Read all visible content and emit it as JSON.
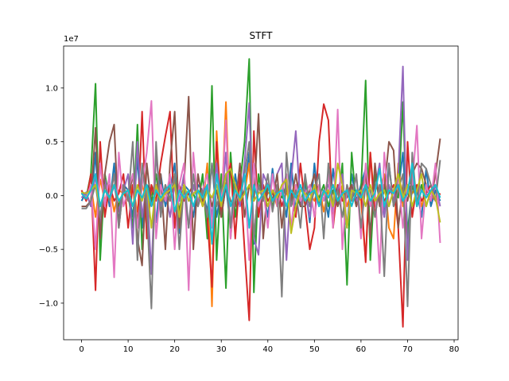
{
  "chart_data": {
    "type": "line",
    "title": "STFT",
    "xlabel": "",
    "ylabel": "",
    "y_offset_text": "1e7",
    "xlim": [
      -3.85,
      80.85
    ],
    "ylim": [
      -1.34,
      1.39
    ],
    "y_scale_factor": 10000000,
    "x_ticks": [
      0,
      10,
      20,
      30,
      40,
      50,
      60,
      70,
      80
    ],
    "y_ticks": [
      -1.0,
      -0.5,
      0.0,
      0.5,
      1.0
    ],
    "x_tick_labels": [
      "0",
      "10",
      "20",
      "30",
      "40",
      "50",
      "60",
      "70",
      "80"
    ],
    "y_tick_labels": [
      "−1.0",
      "−0.5",
      "0.0",
      "0.5",
      "1.0"
    ],
    "grid": false,
    "legend": false,
    "x": [
      0,
      1,
      2,
      3,
      4,
      5,
      6,
      7,
      8,
      9,
      10,
      11,
      12,
      13,
      14,
      15,
      16,
      17,
      18,
      19,
      20,
      21,
      22,
      23,
      24,
      25,
      26,
      27,
      28,
      29,
      30,
      31,
      32,
      33,
      34,
      35,
      36,
      37,
      38,
      39,
      40,
      41,
      42,
      43,
      44,
      45,
      46,
      47,
      48,
      49,
      50,
      51,
      52,
      53,
      54,
      55,
      56,
      57,
      58,
      59,
      60,
      61,
      62,
      63,
      64,
      65,
      66,
      67,
      68,
      69,
      70,
      71,
      72,
      73,
      74,
      75,
      76,
      77
    ],
    "series": [
      {
        "color": "#1f77b4",
        "values": [
          -0.05,
          0.03,
          -0.1,
          0.4,
          -0.35,
          0.2,
          -0.1,
          0.3,
          -0.25,
          0.1,
          0.05,
          -0.2,
          0.35,
          -0.3,
          0.1,
          0.05,
          -0.25,
          0.2,
          -0.1,
          0.05,
          0.3,
          -0.35,
          0.1,
          0.05,
          -0.2,
          0.1,
          0.05,
          -0.15,
          0.3,
          -0.2,
          0.05,
          0.1,
          -0.3,
          0.2,
          -0.1,
          0.05,
          0.4,
          -0.45,
          0.1,
          0.05,
          -0.2,
          0.25,
          -0.1,
          0.05,
          -0.2,
          0.3,
          -0.15,
          0.05,
          0.1,
          -0.25,
          0.3,
          -0.1,
          0.05,
          -0.2,
          0.25,
          -0.1,
          0.05,
          -0.3,
          0.2,
          -0.05,
          0.1,
          0.25,
          -0.35,
          0.1,
          0.05,
          -0.2,
          0.3,
          -0.1,
          0.05,
          0.4,
          -0.35,
          0.1,
          0.05,
          -0.2,
          0.25,
          -0.1,
          0.05,
          -0.05
        ]
      },
      {
        "color": "#ff7f0e",
        "values": [
          0.05,
          -0.05,
          0.1,
          -0.2,
          0.15,
          -0.05,
          0.1,
          -0.15,
          0.05,
          0.02,
          -0.05,
          0.1,
          -0.15,
          0.1,
          -0.05,
          0.02,
          0.1,
          -0.1,
          0.05,
          -0.02,
          0.15,
          -0.2,
          0.1,
          -0.05,
          0.02,
          0.05,
          -0.1,
          0.3,
          -1.03,
          0.6,
          -0.2,
          0.87,
          -0.4,
          0.1,
          -0.05,
          0.02,
          0.3,
          -0.4,
          0.1,
          -0.05,
          0.02,
          0.05,
          -0.1,
          0.05,
          0.02,
          -0.05,
          0.1,
          -0.1,
          0.05,
          0.02,
          -0.05,
          0.1,
          -0.15,
          0.05,
          0.02,
          -0.05,
          0.1,
          -0.1,
          0.05,
          0.02,
          -0.05,
          -0.6,
          0.4,
          -0.1,
          0.05,
          0.2,
          -0.3,
          -0.4,
          0.3,
          -0.1,
          0.05,
          0.02,
          0.1,
          -0.1,
          0.05,
          0.02,
          -0.05,
          0.02
        ]
      },
      {
        "color": "#2ca02c",
        "values": [
          0.03,
          -0.02,
          0.2,
          1.04,
          -0.6,
          0.2,
          -0.05,
          0.1,
          -0.1,
          0.05,
          0.02,
          -0.3,
          0.66,
          -0.5,
          0.1,
          -0.05,
          0.2,
          -0.15,
          0.1,
          -0.05,
          0.2,
          -0.15,
          0.1,
          -0.05,
          0.02,
          -0.1,
          0.2,
          -0.4,
          1.02,
          -0.6,
          0.2,
          -0.86,
          0.4,
          -0.2,
          0.1,
          0.5,
          1.27,
          -0.9,
          0.2,
          -0.05,
          0.1,
          -0.1,
          0.05,
          -0.02,
          0.1,
          -0.05,
          0.02,
          -0.1,
          0.15,
          -0.1,
          0.05,
          -0.02,
          0.1,
          -0.1,
          0.05,
          -0.1,
          0.3,
          -0.83,
          0.4,
          -0.1,
          0.05,
          1.07,
          -0.6,
          0.2,
          -0.05,
          0.1,
          -0.1,
          0.05,
          -0.02,
          0.87,
          -0.4,
          0.1,
          -0.05,
          0.1,
          -0.1,
          0.05,
          -0.02,
          0.02
        ]
      },
      {
        "color": "#d62728",
        "values": [
          0.05,
          -0.05,
          0.2,
          -0.88,
          0.5,
          -0.2,
          0.1,
          -0.05,
          0.02,
          0.2,
          -0.3,
          0.1,
          -0.3,
          0.78,
          -0.4,
          0.1,
          -0.05,
          0.3,
          0.55,
          0.78,
          -0.3,
          0.1,
          -0.05,
          0.02,
          0.1,
          -0.05,
          0.02,
          -0.2,
          -0.85,
          0.5,
          -0.2,
          0.1,
          0.3,
          -0.4,
          0.2,
          -0.5,
          -1.16,
          0.6,
          -0.2,
          0.1,
          -0.05,
          0.02,
          0.1,
          -0.1,
          0.05,
          0.02,
          -0.2,
          0.3,
          -0.1,
          -0.5,
          -0.3,
          0.5,
          0.85,
          0.7,
          -0.3,
          0.1,
          -0.05,
          0.02,
          0.1,
          -0.1,
          0.05,
          -0.62,
          0.4,
          -0.2,
          0.1,
          -0.05,
          0.02,
          0.1,
          -0.3,
          -1.22,
          0.5,
          -0.2,
          0.1,
          -0.05,
          0.02,
          0.1,
          -0.05,
          0.02
        ]
      },
      {
        "color": "#9467bd",
        "values": [
          -0.02,
          0.03,
          -0.1,
          0.2,
          -0.3,
          0.15,
          -0.05,
          0.1,
          -0.15,
          0.05,
          0.2,
          -0.45,
          0.5,
          -0.2,
          0.1,
          -0.73,
          0.4,
          -0.1,
          0.05,
          -0.2,
          0.1,
          -0.05,
          0.2,
          -0.3,
          0.1,
          -0.05,
          0.02,
          0.1,
          -0.2,
          0.3,
          -0.1,
          0.4,
          -0.3,
          0.1,
          -0.1,
          0.3,
          0.86,
          -0.4,
          -0.55,
          0.2,
          0.1,
          -0.05,
          0.2,
          0.3,
          -0.6,
          0.15,
          0.6,
          -0.1,
          0.05,
          -0.2,
          0.1,
          -0.05,
          0.02,
          0.1,
          -0.15,
          0.05,
          0.2,
          -0.3,
          0.1,
          -0.05,
          0.02,
          0.1,
          -0.1,
          0.05,
          0.3,
          -0.2,
          0.1,
          -0.05,
          0.2,
          1.2,
          -0.6,
          0.2,
          -0.1,
          0.05,
          0.02,
          -0.05,
          0.1,
          -0.1
        ]
      },
      {
        "color": "#8c564b",
        "values": [
          -0.1,
          -0.1,
          -0.05,
          0.63,
          -0.4,
          0.2,
          0.5,
          0.66,
          -0.3,
          0.1,
          -0.05,
          0.2,
          -0.4,
          -0.65,
          0.3,
          -0.1,
          0.05,
          0.2,
          -0.5,
          0.3,
          0.78,
          -0.3,
          0.1,
          0.92,
          -0.5,
          0.2,
          -0.05,
          0.1,
          -0.1,
          0.05,
          -0.2,
          0.1,
          -0.05,
          -0.1,
          0.3,
          -0.2,
          0.1,
          -0.05,
          0.76,
          -0.4,
          0.1,
          -0.05,
          0.2,
          -0.3,
          0.1,
          -0.05,
          0.2,
          -0.1,
          -0.1,
          0.05,
          0.2,
          -0.1,
          0.05,
          -0.02,
          0.1,
          -0.1,
          0.05,
          -0.02,
          0.1,
          -0.1,
          0.05,
          0.2,
          -0.4,
          0.3,
          -0.1,
          0.05,
          0.5,
          0.42,
          -0.3,
          0.1,
          -0.05,
          0.2,
          0.3,
          0.25,
          0.1,
          -0.05,
          0.2,
          0.53
        ]
      },
      {
        "color": "#e377c2",
        "values": [
          0.02,
          -0.02,
          0.1,
          -0.5,
          0.3,
          -0.1,
          0.2,
          -0.76,
          0.4,
          -0.1,
          0.05,
          0.2,
          -0.3,
          0.1,
          0.4,
          0.88,
          -0.4,
          0.1,
          -0.05,
          0.2,
          -0.5,
          0.1,
          0.3,
          -0.88,
          0.4,
          -0.1,
          0.05,
          0.2,
          -0.3,
          0.2,
          -0.1,
          0.7,
          -0.4,
          0.1,
          -0.05,
          0.2,
          -0.6,
          0.3,
          -0.1,
          0.05,
          -0.3,
          0.2,
          -0.1,
          0.05,
          0.2,
          -0.3,
          0.1,
          -0.05,
          0.02,
          0.1,
          -0.2,
          0.1,
          -0.05,
          0.2,
          -0.3,
          0.8,
          -0.5,
          0.1,
          -0.05,
          0.2,
          -0.4,
          0.3,
          -0.1,
          0.05,
          -0.72,
          0.4,
          -0.1,
          0.05,
          0.2,
          -0.3,
          0.1,
          0.1,
          0.65,
          -0.4,
          0.1,
          -0.05,
          0.3,
          -0.44
        ]
      },
      {
        "color": "#7f7f7f",
        "values": [
          -0.12,
          -0.12,
          -0.05,
          0.1,
          -0.2,
          0.1,
          -0.05,
          0.2,
          -0.3,
          0.1,
          -0.05,
          0.5,
          -0.6,
          0.3,
          -0.1,
          -1.05,
          0.5,
          -0.2,
          0.1,
          -0.05,
          0.2,
          -0.5,
          0.1,
          -0.3,
          0.2,
          -0.1,
          0.05,
          -0.2,
          0.3,
          -0.1,
          0.05,
          0.2,
          -0.3,
          0.1,
          -0.05,
          0.2,
          0.5,
          -0.4,
          0.1,
          -0.05,
          0.2,
          -0.15,
          0.1,
          -0.94,
          0.4,
          -0.1,
          0.05,
          -0.3,
          0.2,
          -0.1,
          0.05,
          0.2,
          -0.4,
          0.3,
          -0.1,
          0.05,
          -0.2,
          0.1,
          -0.05,
          0.2,
          -0.3,
          0.1,
          0.05,
          -0.2,
          0.1,
          -0.75,
          0.3,
          -0.1,
          0.05,
          0.2,
          -1.03,
          0.4,
          -0.1,
          0.3,
          0.25,
          0.1,
          -0.05,
          0.33
        ]
      },
      {
        "color": "#bcbd22",
        "values": [
          0.03,
          0.02,
          0.05,
          0.1,
          -0.1,
          0.05,
          -0.02,
          0.1,
          -0.05,
          0.02,
          0.05,
          -0.1,
          0.1,
          -0.05,
          0.1,
          -0.3,
          0.1,
          -0.05,
          0.02,
          0.05,
          0.1,
          -0.2,
          0.1,
          -0.05,
          0.02,
          0.05,
          -0.1,
          0.05,
          -0.02,
          0.1,
          -0.1,
          0.2,
          0.25,
          0.1,
          -0.05,
          0.02,
          0.1,
          -0.05,
          0.02,
          0.05,
          -0.1,
          0.05,
          -0.02,
          0.1,
          0.15,
          -0.35,
          -0.1,
          0.05,
          0.02,
          -0.05,
          0.1,
          -0.05,
          0.02,
          0.05,
          -0.1,
          0.3,
          0.1,
          -0.3,
          0.05,
          0.02,
          0.05,
          -0.1,
          0.1,
          -0.05,
          0.02,
          0.05,
          -0.1,
          0.05,
          0.2,
          -0.02,
          0.1,
          -0.1,
          0.05,
          0.2,
          -0.1,
          0.05,
          -0.02,
          -0.25
        ]
      },
      {
        "color": "#17becf",
        "values": [
          0.02,
          -0.03,
          0.05,
          0.2,
          -0.1,
          0.05,
          -0.02,
          0.1,
          -0.05,
          0.02,
          0.05,
          -0.1,
          0.05,
          -0.02,
          0.1,
          -0.1,
          0.05,
          -0.02,
          0.05,
          0.1,
          -0.15,
          0.05,
          -0.02,
          0.05,
          -0.1,
          0.05,
          -0.02,
          0.1,
          -0.45,
          0.2,
          -0.05,
          0.1,
          -0.1,
          0.05,
          -0.02,
          0.2,
          -0.3,
          0.1,
          -0.05,
          0.02,
          0.1,
          -0.05,
          0.02,
          0.05,
          -0.1,
          0.05,
          -0.02,
          0.1,
          -0.05,
          0.02,
          0.05,
          -0.1,
          0.05,
          -0.02,
          0.1,
          -0.05,
          0.02,
          0.05,
          -0.1,
          0.05,
          -0.02,
          0.1,
          -0.05,
          0.02,
          0.25,
          -0.1,
          0.05,
          0.02,
          0.1,
          -0.05,
          0.02,
          0.3,
          -0.1,
          0.05,
          -0.02,
          0.05,
          0.1,
          -0.02
        ]
      }
    ]
  }
}
